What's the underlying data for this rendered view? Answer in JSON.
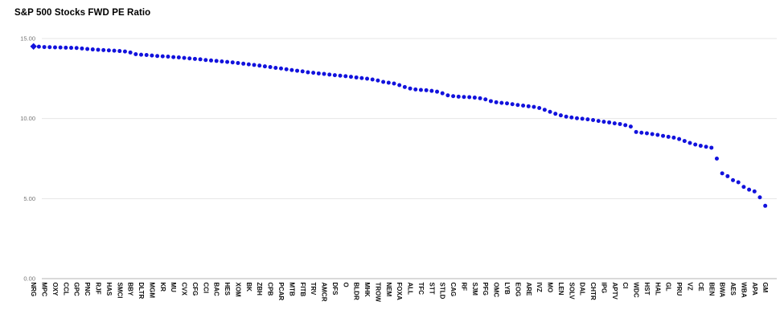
{
  "page": {
    "background": "#ffffff"
  },
  "chart_data": {
    "type": "scatter",
    "title": "S&P 500 Stocks FWD PE Ratio",
    "xlabel": "",
    "ylabel": "",
    "ylim": [
      0,
      15
    ],
    "grid": true,
    "legend": "none",
    "marker_color": "#1212dd",
    "grid_color": "#e6e6e6",
    "axis_line_color": "#b3b3b3",
    "y_tick_label_color": "#757575",
    "x_tick_label_color": "#111111",
    "first_marker_shape": "diamond",
    "label_stride": 2,
    "y_ticks": [
      {
        "value": 15,
        "label": "15.00"
      },
      {
        "value": 10,
        "label": "10.00"
      },
      {
        "value": 5,
        "label": "5.00"
      },
      {
        "value": 0,
        "label": "0.00"
      }
    ],
    "x_tick_labels": [
      "NRG",
      "MPC",
      "OXY",
      "CCL",
      "GPC",
      "PNC",
      "RJF",
      "HAS",
      "SMCI",
      "BBY",
      "DLTR",
      "MGM",
      "KR",
      "MU",
      "CVX",
      "CFG",
      "CCI",
      "BAC",
      "HES",
      "XOM",
      "BK",
      "ZBH",
      "CPB",
      "PCAR",
      "MTB",
      "FITB",
      "TRV",
      "AMCR",
      "DFS",
      "O",
      "BLDR",
      "MHK",
      "TROW",
      "NEM",
      "FOXA",
      "ALL",
      "TFC",
      "STT",
      "STLD",
      "CAG",
      "RF",
      "SJM",
      "PFG",
      "OMC",
      "LYB",
      "EOG",
      "ARE",
      "IVZ",
      "MO",
      "LEN",
      "SOLV",
      "DAL",
      "CHTR",
      "IPG",
      "APTV",
      "CI",
      "WDC",
      "HST",
      "HAL",
      "GL",
      "PRU",
      "VZ",
      "CE",
      "BEN",
      "BWA",
      "AES",
      "WBA",
      "APA",
      "GM"
    ],
    "values": [
      14.51,
      14.49,
      14.47,
      14.46,
      14.45,
      14.44,
      14.43,
      14.42,
      14.41,
      14.38,
      14.35,
      14.32,
      14.3,
      14.28,
      14.26,
      14.24,
      14.22,
      14.19,
      14.13,
      14.02,
      13.99,
      13.97,
      13.94,
      13.91,
      13.89,
      13.87,
      13.84,
      13.82,
      13.79,
      13.76,
      13.73,
      13.7,
      13.66,
      13.63,
      13.6,
      13.57,
      13.54,
      13.51,
      13.47,
      13.43,
      13.39,
      13.35,
      13.31,
      13.26,
      13.22,
      13.17,
      13.13,
      13.08,
      13.03,
      12.99,
      12.95,
      12.89,
      12.86,
      12.82,
      12.79,
      12.75,
      12.71,
      12.68,
      12.65,
      12.61,
      12.57,
      12.53,
      12.49,
      12.44,
      12.38,
      12.29,
      12.24,
      12.19,
      12.09,
      11.97,
      11.88,
      11.82,
      11.79,
      11.77,
      11.73,
      11.68,
      11.58,
      11.45,
      11.4,
      11.37,
      11.35,
      11.34,
      11.31,
      11.27,
      11.2,
      11.09,
      11.02,
      10.98,
      10.95,
      10.9,
      10.85,
      10.81,
      10.77,
      10.73,
      10.66,
      10.55,
      10.42,
      10.3,
      10.2,
      10.12,
      10.07,
      10.02,
      9.99,
      9.95,
      9.91,
      9.85,
      9.8,
      9.76,
      9.7,
      9.66,
      9.59,
      9.5,
      9.16,
      9.12,
      9.08,
      9.03,
      8.98,
      8.92,
      8.86,
      8.81,
      8.72,
      8.6,
      8.48,
      8.38,
      8.3,
      8.24,
      8.18,
      7.5,
      6.58,
      6.4,
      6.15,
      6.02,
      5.73,
      5.56,
      5.45,
      5.08,
      4.55
    ]
  }
}
